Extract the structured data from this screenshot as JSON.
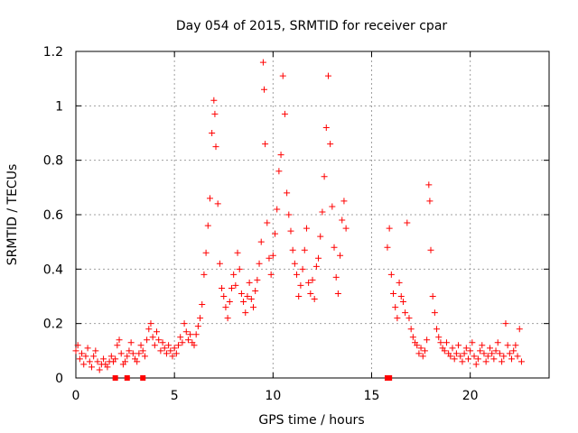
{
  "chart_data": {
    "type": "scatter",
    "title": "Day 054 of 2015, SRMTID for receiver cpar",
    "xlabel": "GPS time / hours",
    "ylabel": "SRMTID / TECUs",
    "xlim": [
      0,
      24
    ],
    "ylim": [
      0,
      1.2
    ],
    "x_ticks": [
      "0",
      "5",
      "10",
      "15",
      "20"
    ],
    "y_ticks": [
      "0",
      "0.2",
      "0.4",
      "0.6",
      "0.8",
      "1",
      "1.2"
    ],
    "grid": true,
    "marker": "plus",
    "series_color": "#ff0000",
    "series": [
      {
        "name": "SRMTID",
        "points": [
          [
            0.0,
            0.1
          ],
          [
            0.1,
            0.12
          ],
          [
            0.2,
            0.07
          ],
          [
            0.3,
            0.09
          ],
          [
            0.4,
            0.05
          ],
          [
            0.5,
            0.08
          ],
          [
            0.6,
            0.11
          ],
          [
            0.7,
            0.06
          ],
          [
            0.8,
            0.04
          ],
          [
            0.9,
            0.08
          ],
          [
            1.0,
            0.1
          ],
          [
            1.1,
            0.06
          ],
          [
            1.2,
            0.03
          ],
          [
            1.3,
            0.05
          ],
          [
            1.4,
            0.07
          ],
          [
            1.5,
            0.05
          ],
          [
            1.6,
            0.04
          ],
          [
            1.7,
            0.06
          ],
          [
            1.8,
            0.08
          ],
          [
            1.9,
            0.06
          ],
          [
            2.0,
            0.07
          ],
          [
            2.1,
            0.12
          ],
          [
            2.2,
            0.14
          ],
          [
            2.3,
            0.09
          ],
          [
            2.4,
            0.05
          ],
          [
            2.5,
            0.06
          ],
          [
            2.6,
            0.08
          ],
          [
            2.7,
            0.1
          ],
          [
            2.8,
            0.13
          ],
          [
            2.9,
            0.09
          ],
          [
            3.0,
            0.07
          ],
          [
            3.1,
            0.06
          ],
          [
            3.2,
            0.09
          ],
          [
            3.3,
            0.12
          ],
          [
            3.4,
            0.1
          ],
          [
            3.5,
            0.08
          ],
          [
            3.6,
            0.14
          ],
          [
            3.7,
            0.18
          ],
          [
            3.8,
            0.2
          ],
          [
            3.9,
            0.15
          ],
          [
            4.0,
            0.12
          ],
          [
            4.1,
            0.17
          ],
          [
            4.2,
            0.14
          ],
          [
            4.3,
            0.1
          ],
          [
            4.4,
            0.13
          ],
          [
            4.5,
            0.11
          ],
          [
            4.6,
            0.09
          ],
          [
            4.7,
            0.12
          ],
          [
            4.8,
            0.1
          ],
          [
            4.9,
            0.08
          ],
          [
            5.0,
            0.11
          ],
          [
            5.1,
            0.09
          ],
          [
            5.2,
            0.12
          ],
          [
            5.3,
            0.15
          ],
          [
            5.4,
            0.13
          ],
          [
            5.5,
            0.2
          ],
          [
            5.6,
            0.17
          ],
          [
            5.7,
            0.14
          ],
          [
            5.8,
            0.16
          ],
          [
            5.9,
            0.13
          ],
          [
            6.0,
            0.12
          ],
          [
            6.1,
            0.16
          ],
          [
            6.2,
            0.19
          ],
          [
            6.3,
            0.22
          ],
          [
            6.4,
            0.27
          ],
          [
            6.5,
            0.38
          ],
          [
            6.6,
            0.46
          ],
          [
            6.7,
            0.56
          ],
          [
            6.8,
            0.66
          ],
          [
            6.9,
            0.9
          ],
          [
            7.0,
            1.02
          ],
          [
            7.05,
            0.97
          ],
          [
            7.1,
            0.85
          ],
          [
            7.2,
            0.64
          ],
          [
            7.3,
            0.42
          ],
          [
            7.4,
            0.33
          ],
          [
            7.5,
            0.3
          ],
          [
            7.6,
            0.26
          ],
          [
            7.7,
            0.22
          ],
          [
            7.8,
            0.28
          ],
          [
            7.9,
            0.33
          ],
          [
            8.0,
            0.38
          ],
          [
            8.1,
            0.34
          ],
          [
            8.2,
            0.46
          ],
          [
            8.3,
            0.4
          ],
          [
            8.4,
            0.31
          ],
          [
            8.5,
            0.28
          ],
          [
            8.6,
            0.24
          ],
          [
            8.7,
            0.3
          ],
          [
            8.8,
            0.35
          ],
          [
            8.9,
            0.29
          ],
          [
            9.0,
            0.26
          ],
          [
            9.1,
            0.32
          ],
          [
            9.2,
            0.36
          ],
          [
            9.3,
            0.42
          ],
          [
            9.4,
            0.5
          ],
          [
            9.5,
            1.16
          ],
          [
            9.55,
            1.06
          ],
          [
            9.6,
            0.86
          ],
          [
            9.7,
            0.57
          ],
          [
            9.8,
            0.44
          ],
          [
            9.9,
            0.38
          ],
          [
            10.0,
            0.45
          ],
          [
            10.1,
            0.53
          ],
          [
            10.2,
            0.62
          ],
          [
            10.3,
            0.76
          ],
          [
            10.4,
            0.82
          ],
          [
            10.5,
            1.11
          ],
          [
            10.6,
            0.97
          ],
          [
            10.7,
            0.68
          ],
          [
            10.8,
            0.6
          ],
          [
            10.9,
            0.54
          ],
          [
            11.0,
            0.47
          ],
          [
            11.1,
            0.42
          ],
          [
            11.2,
            0.38
          ],
          [
            11.3,
            0.3
          ],
          [
            11.4,
            0.34
          ],
          [
            11.5,
            0.4
          ],
          [
            11.6,
            0.47
          ],
          [
            11.7,
            0.55
          ],
          [
            11.8,
            0.35
          ],
          [
            11.9,
            0.31
          ],
          [
            12.0,
            0.36
          ],
          [
            12.1,
            0.29
          ],
          [
            12.2,
            0.41
          ],
          [
            12.3,
            0.44
          ],
          [
            12.4,
            0.52
          ],
          [
            12.5,
            0.61
          ],
          [
            12.6,
            0.74
          ],
          [
            12.7,
            0.92
          ],
          [
            12.8,
            1.11
          ],
          [
            12.9,
            0.86
          ],
          [
            13.0,
            0.63
          ],
          [
            13.1,
            0.48
          ],
          [
            13.2,
            0.37
          ],
          [
            13.3,
            0.31
          ],
          [
            13.4,
            0.45
          ],
          [
            13.5,
            0.58
          ],
          [
            13.6,
            0.65
          ],
          [
            13.7,
            0.55
          ],
          [
            15.8,
            0.48
          ],
          [
            15.9,
            0.55
          ],
          [
            16.0,
            0.38
          ],
          [
            16.1,
            0.31
          ],
          [
            16.2,
            0.26
          ],
          [
            16.3,
            0.22
          ],
          [
            16.4,
            0.35
          ],
          [
            16.5,
            0.3
          ],
          [
            16.6,
            0.28
          ],
          [
            16.7,
            0.24
          ],
          [
            16.8,
            0.57
          ],
          [
            16.9,
            0.22
          ],
          [
            17.0,
            0.18
          ],
          [
            17.1,
            0.15
          ],
          [
            17.2,
            0.13
          ],
          [
            17.3,
            0.12
          ],
          [
            17.4,
            0.09
          ],
          [
            17.5,
            0.11
          ],
          [
            17.6,
            0.08
          ],
          [
            17.7,
            0.1
          ],
          [
            17.8,
            0.14
          ],
          [
            17.9,
            0.71
          ],
          [
            17.95,
            0.65
          ],
          [
            18.0,
            0.47
          ],
          [
            18.1,
            0.3
          ],
          [
            18.2,
            0.24
          ],
          [
            18.3,
            0.18
          ],
          [
            18.4,
            0.15
          ],
          [
            18.5,
            0.13
          ],
          [
            18.6,
            0.11
          ],
          [
            18.7,
            0.1
          ],
          [
            18.8,
            0.13
          ],
          [
            18.9,
            0.09
          ],
          [
            19.0,
            0.08
          ],
          [
            19.1,
            0.11
          ],
          [
            19.2,
            0.07
          ],
          [
            19.3,
            0.09
          ],
          [
            19.4,
            0.12
          ],
          [
            19.5,
            0.08
          ],
          [
            19.6,
            0.06
          ],
          [
            19.7,
            0.09
          ],
          [
            19.8,
            0.11
          ],
          [
            19.9,
            0.07
          ],
          [
            20.0,
            0.1
          ],
          [
            20.1,
            0.13
          ],
          [
            20.2,
            0.08
          ],
          [
            20.3,
            0.05
          ],
          [
            20.4,
            0.07
          ],
          [
            20.5,
            0.1
          ],
          [
            20.6,
            0.12
          ],
          [
            20.7,
            0.09
          ],
          [
            20.8,
            0.06
          ],
          [
            20.9,
            0.08
          ],
          [
            21.0,
            0.11
          ],
          [
            21.1,
            0.09
          ],
          [
            21.2,
            0.07
          ],
          [
            21.3,
            0.1
          ],
          [
            21.4,
            0.13
          ],
          [
            21.5,
            0.09
          ],
          [
            21.6,
            0.06
          ],
          [
            21.7,
            0.08
          ],
          [
            21.8,
            0.2
          ],
          [
            21.9,
            0.12
          ],
          [
            22.0,
            0.09
          ],
          [
            22.1,
            0.07
          ],
          [
            22.2,
            0.1
          ],
          [
            22.3,
            0.12
          ],
          [
            22.4,
            0.08
          ],
          [
            22.5,
            0.18
          ],
          [
            22.6,
            0.06
          ]
        ]
      }
    ],
    "square_markers": [
      [
        2.0,
        0
      ],
      [
        2.6,
        0
      ],
      [
        3.4,
        0
      ],
      [
        15.8,
        0
      ],
      [
        15.9,
        0
      ]
    ]
  }
}
